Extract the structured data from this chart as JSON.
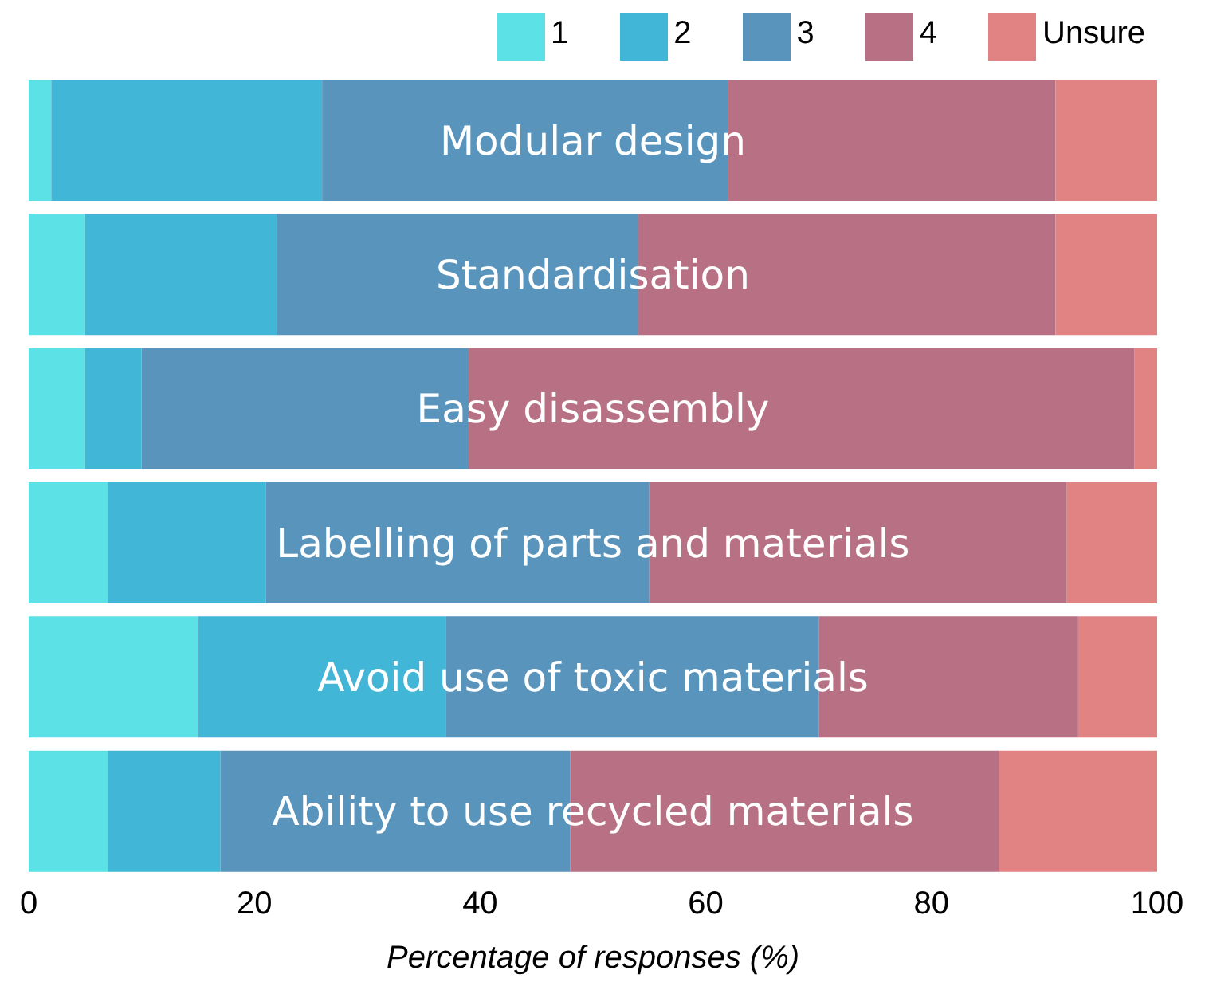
{
  "chart_data": {
    "type": "bar",
    "orientation": "horizontal",
    "stacked": true,
    "xlabel": "Percentage of responses (%)",
    "categories": [
      "Modular design",
      "Standardisation",
      "Easy disassembly",
      "Labelling of parts and materials",
      "Avoid use of toxic materials",
      "Ability to use recycled materials"
    ],
    "series": [
      {
        "name": "1",
        "color": "#5ce1e6",
        "values": [
          2,
          5,
          5,
          7,
          15,
          7
        ]
      },
      {
        "name": "2",
        "color": "#41b6d6",
        "values": [
          24,
          17,
          5,
          14,
          22,
          10
        ]
      },
      {
        "name": "3",
        "color": "#5894bb",
        "values": [
          36,
          32,
          29,
          34,
          33,
          31
        ]
      },
      {
        "name": "4",
        "color": "#b87184",
        "values": [
          29,
          37,
          59,
          37,
          23,
          38
        ]
      },
      {
        "name": "Unsure",
        "color": "#e18383",
        "values": [
          9,
          9,
          2,
          8,
          7,
          14
        ]
      }
    ],
    "xlim": [
      0,
      100
    ],
    "xticks": [
      0,
      20,
      40,
      60,
      80,
      100
    ],
    "legend": "top"
  }
}
